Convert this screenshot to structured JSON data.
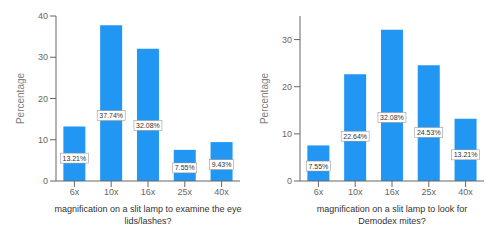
{
  "chart_data": [
    {
      "type": "bar",
      "categories": [
        "6x",
        "10x",
        "16x",
        "25x",
        "40x"
      ],
      "values": [
        13.21,
        37.74,
        32.08,
        7.55,
        9.43
      ],
      "value_labels": [
        "13.21%",
        "37.74%",
        "32.08%",
        "7.55%",
        "9.43%"
      ],
      "data_labels": true,
      "xlabel": "magnification on a slit lamp to examine the eye\nlids/lashes?",
      "ylabel": "Percentage",
      "ylim": [
        0,
        40
      ],
      "yticks": [
        0,
        10,
        20,
        30,
        40
      ],
      "color": "#2196F3",
      "grid": false
    },
    {
      "type": "bar",
      "categories": [
        "6x",
        "10x",
        "16x",
        "25x",
        "40x"
      ],
      "values": [
        7.55,
        22.64,
        32.08,
        24.53,
        13.21
      ],
      "value_labels": [
        "7.55%",
        "22.64%",
        "32.08%",
        "24.53%",
        "13.21%"
      ],
      "data_labels": true,
      "xlabel": "magnification on a slit lamp to look for\nDemodex mites?",
      "ylabel": "Percentage",
      "ylim": [
        0,
        35
      ],
      "yticks": [
        0,
        10,
        20,
        30
      ],
      "color": "#2196F3",
      "grid": false
    }
  ]
}
